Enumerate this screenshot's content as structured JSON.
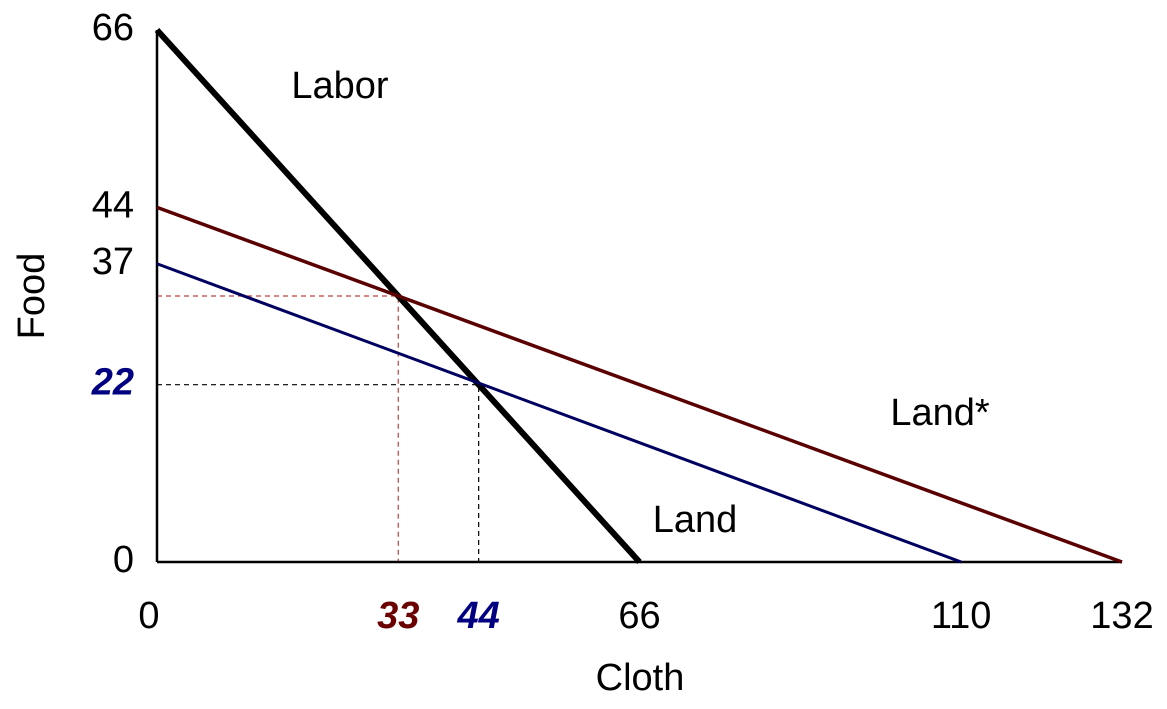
{
  "chart_data": {
    "type": "line",
    "xlabel": "Cloth",
    "ylabel": "Food",
    "xlim": [
      0,
      132
    ],
    "ylim": [
      0,
      66
    ],
    "xticks": [
      0,
      33,
      44,
      66,
      110,
      132
    ],
    "yticks": [
      0,
      22,
      37,
      44,
      66
    ],
    "series": [
      {
        "name": "Labor",
        "color": "#000000",
        "x": [
          0,
          66
        ],
        "values": [
          66,
          0
        ]
      },
      {
        "name": "Land*",
        "color": "#5a0000",
        "x": [
          0,
          132
        ],
        "values": [
          44,
          0
        ]
      },
      {
        "name": "Land",
        "color": "#000060",
        "x": [
          0,
          110
        ],
        "values": [
          37,
          0
        ]
      }
    ],
    "guides": [
      {
        "x": 33,
        "y": 33,
        "line_color": "#c04040",
        "label_color": "#6b0000"
      },
      {
        "x": 44,
        "y": 22,
        "line_color": "#000000",
        "label_color": "#000080"
      }
    ]
  }
}
